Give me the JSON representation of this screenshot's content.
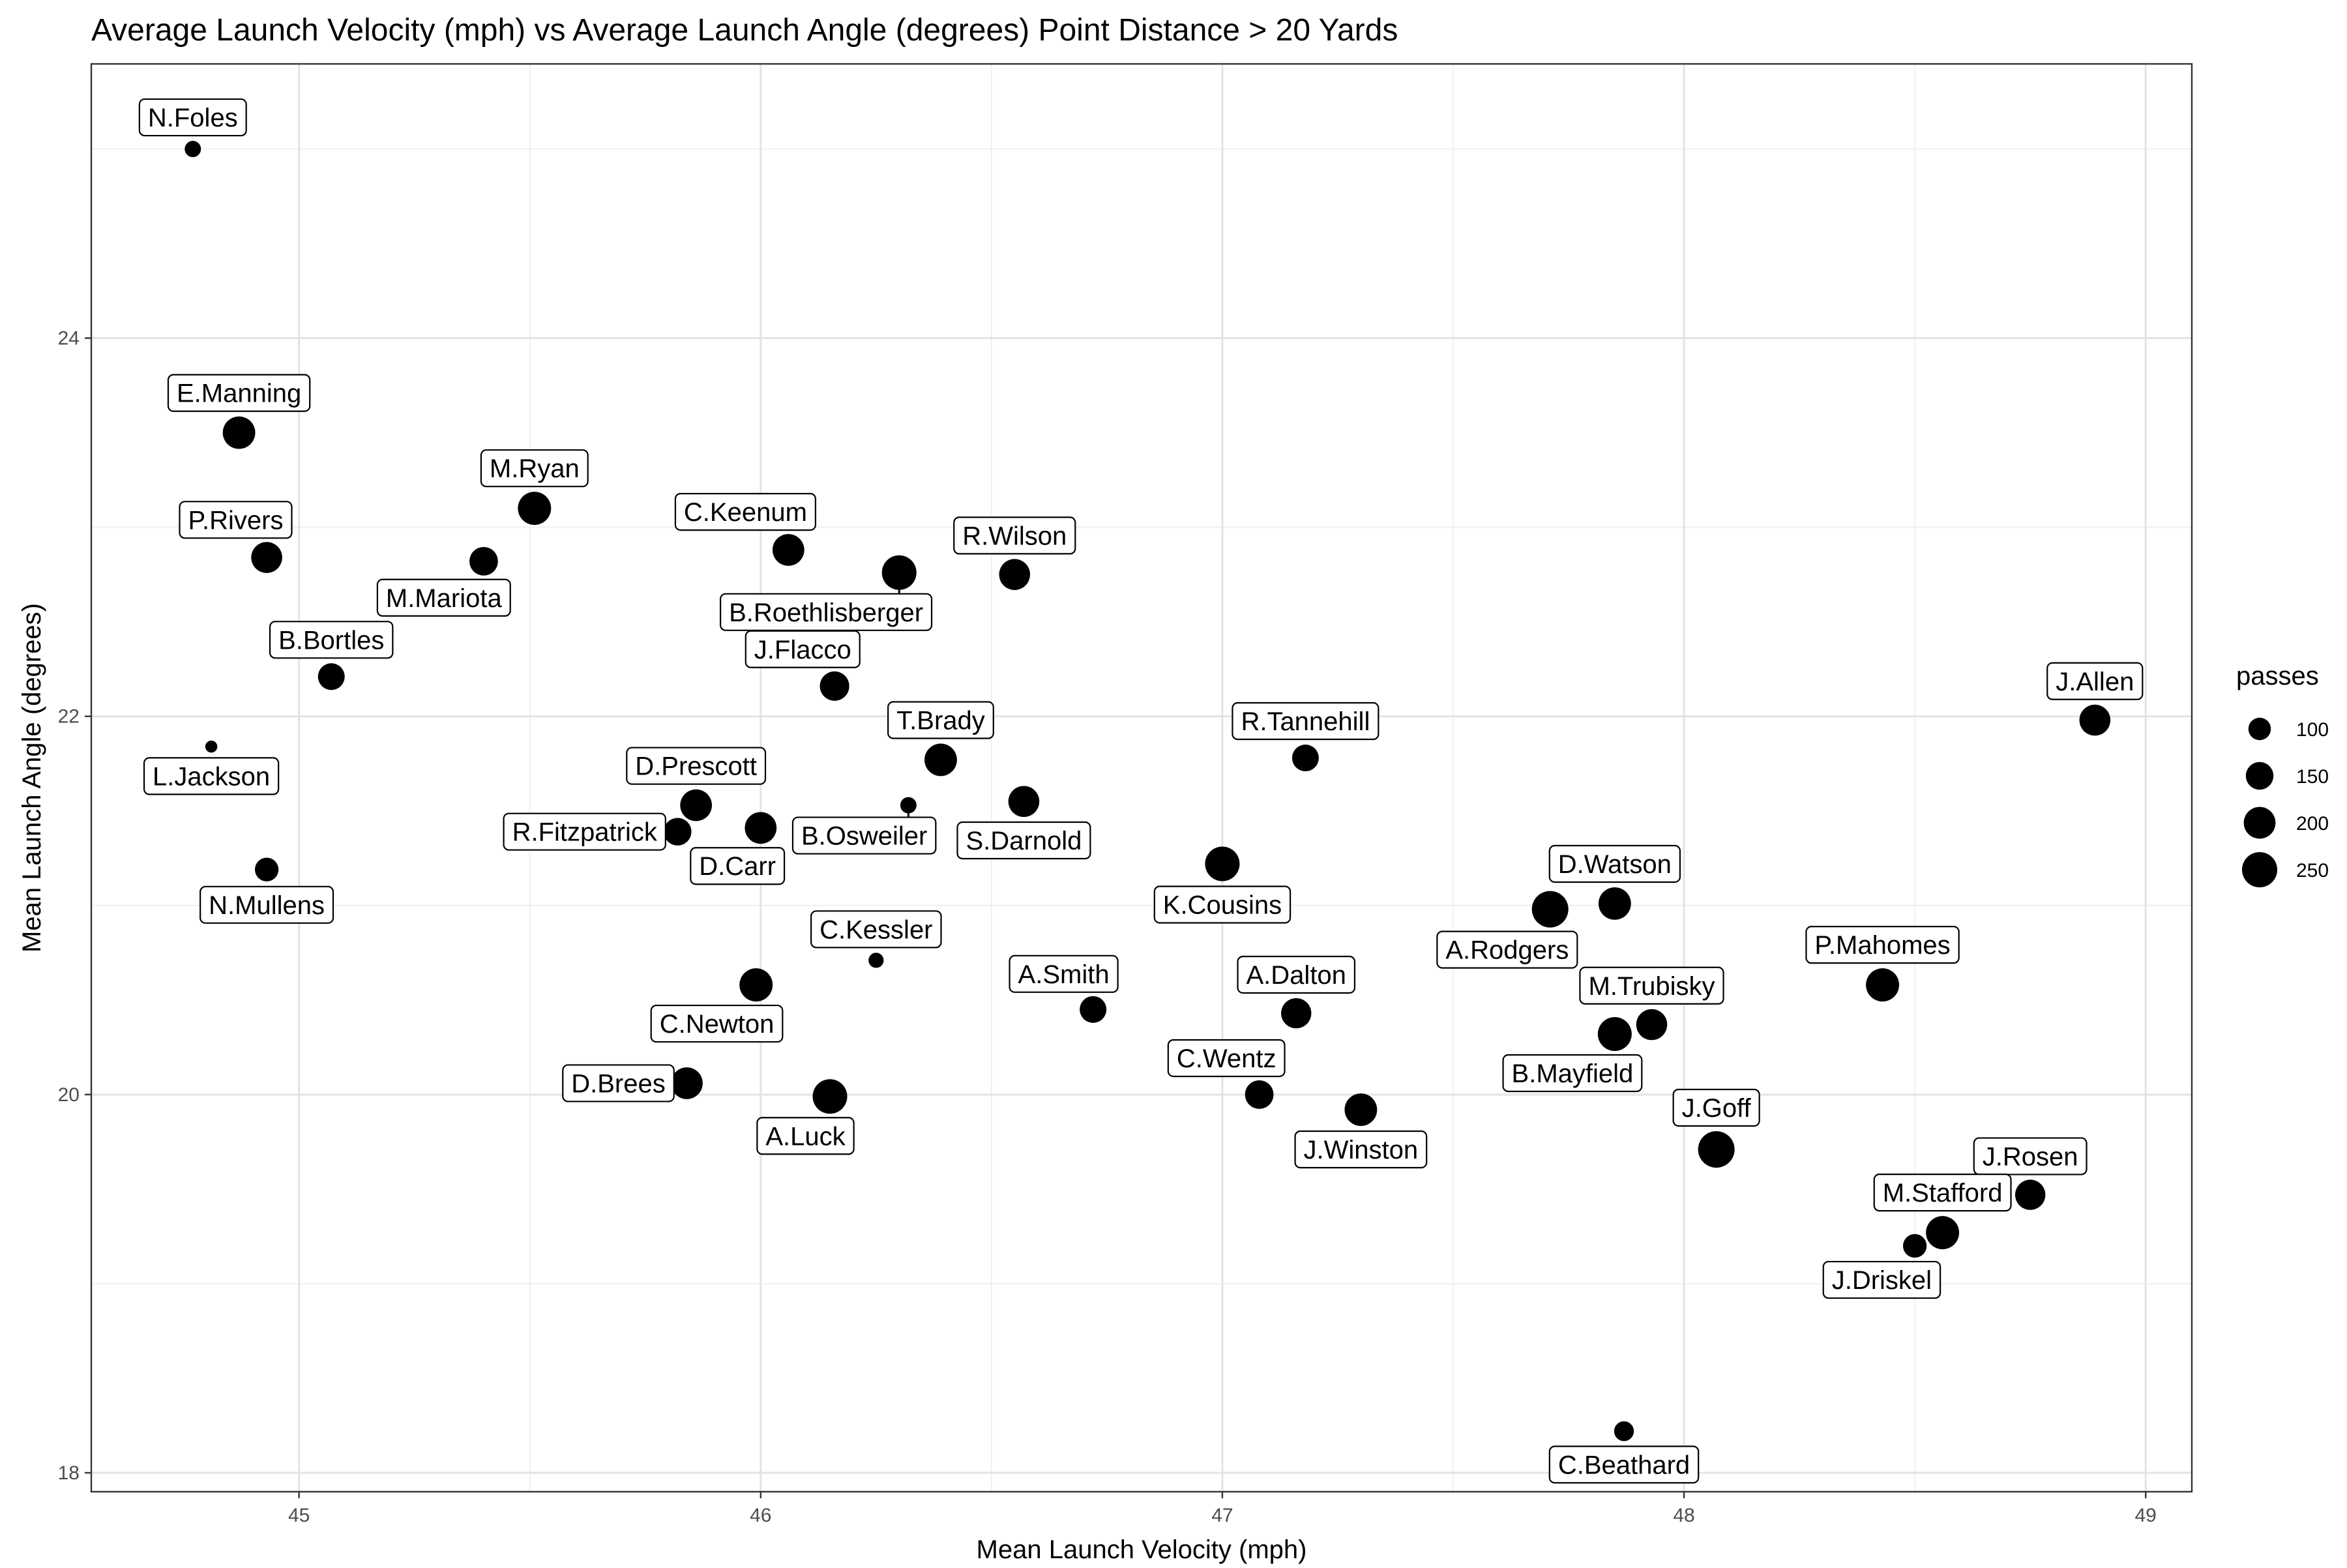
{
  "chart_data": {
    "type": "scatter",
    "title": "Average Launch Velocity (mph) vs Average Launch Angle (degrees) Point Distance > 20 Yards",
    "xlabel": "Mean Launch Velocity (mph)",
    "ylabel": "Mean Launch Angle (degrees)",
    "xlim": [
      44.55,
      49.1
    ],
    "ylim": [
      17.9,
      25.45
    ],
    "x_ticks": [
      45,
      46,
      47,
      48,
      49
    ],
    "y_ticks": [
      18,
      20,
      22,
      24
    ],
    "grid": true,
    "legend": {
      "title": "passes",
      "position": "right",
      "entries": [
        {
          "label": "100",
          "size": 100
        },
        {
          "label": "150",
          "size": 150
        },
        {
          "label": "200",
          "size": 200
        },
        {
          "label": "250",
          "size": 250
        }
      ]
    },
    "size_range": [
      40,
      270
    ],
    "points": [
      {
        "label": "N.Foles",
        "x": 44.77,
        "y": 25.0,
        "passes": 60,
        "label_dir": "up"
      },
      {
        "label": "E.Manning",
        "x": 44.87,
        "y": 23.5,
        "passes": 210,
        "label_dir": "up"
      },
      {
        "label": "P.Rivers",
        "x": 44.93,
        "y": 22.84,
        "passes": 190,
        "label_dir": "up-left"
      },
      {
        "label": "B.Bortles",
        "x": 45.07,
        "y": 22.21,
        "passes": 140,
        "label_dir": "up"
      },
      {
        "label": "L.Jackson",
        "x": 44.81,
        "y": 21.84,
        "passes": 45,
        "label_dir": "down"
      },
      {
        "label": "N.Mullens",
        "x": 44.93,
        "y": 21.19,
        "passes": 110,
        "label_dir": "down"
      },
      {
        "label": "M.Ryan",
        "x": 45.51,
        "y": 23.1,
        "passes": 220,
        "label_dir": "up"
      },
      {
        "label": "M.Mariota",
        "x": 45.4,
        "y": 22.82,
        "passes": 160,
        "label_dir": "down-left"
      },
      {
        "label": "C.Keenum",
        "x": 46.06,
        "y": 22.88,
        "passes": 200,
        "label_dir": "up-left"
      },
      {
        "label": "B.Roethlisberger",
        "x": 46.3,
        "y": 22.76,
        "passes": 240,
        "label_dir": "down-left"
      },
      {
        "label": "R.Wilson",
        "x": 46.55,
        "y": 22.75,
        "passes": 190,
        "label_dir": "up"
      },
      {
        "label": "J.Flacco",
        "x": 46.16,
        "y": 22.16,
        "passes": 170,
        "label_dir": "up-left"
      },
      {
        "label": "T.Brady",
        "x": 46.39,
        "y": 21.77,
        "passes": 210,
        "label_dir": "up"
      },
      {
        "label": "R.Tannehill",
        "x": 47.18,
        "y": 21.78,
        "passes": 140,
        "label_dir": "up"
      },
      {
        "label": "D.Prescott",
        "x": 45.86,
        "y": 21.53,
        "passes": 200,
        "label_dir": "up"
      },
      {
        "label": "R.Fitzpatrick",
        "x": 45.82,
        "y": 21.39,
        "passes": 150,
        "label_dir": "left"
      },
      {
        "label": "D.Carr",
        "x": 46.0,
        "y": 21.41,
        "passes": 200,
        "label_dir": "down-left"
      },
      {
        "label": "B.Osweiler",
        "x": 46.32,
        "y": 21.53,
        "passes": 60,
        "label_dir": "down-left"
      },
      {
        "label": "S.Darnold",
        "x": 46.57,
        "y": 21.55,
        "passes": 190,
        "label_dir": "down"
      },
      {
        "label": "K.Cousins",
        "x": 47.0,
        "y": 21.22,
        "passes": 240,
        "label_dir": "down"
      },
      {
        "label": "J.Allen",
        "x": 48.89,
        "y": 21.98,
        "passes": 190,
        "label_dir": "up"
      },
      {
        "label": "A.Rodgers",
        "x": 47.71,
        "y": 20.98,
        "passes": 270,
        "label_dir": "down-left"
      },
      {
        "label": "D.Watson",
        "x": 47.85,
        "y": 21.01,
        "passes": 210,
        "label_dir": "up"
      },
      {
        "label": "C.Kessler",
        "x": 46.25,
        "y": 20.71,
        "passes": 55,
        "label_dir": "up"
      },
      {
        "label": "C.Newton",
        "x": 45.99,
        "y": 20.58,
        "passes": 220,
        "label_dir": "down-left"
      },
      {
        "label": "A.Smith",
        "x": 46.72,
        "y": 20.45,
        "passes": 140,
        "label_dir": "up-left"
      },
      {
        "label": "A.Dalton",
        "x": 47.16,
        "y": 20.43,
        "passes": 180,
        "label_dir": "up"
      },
      {
        "label": "P.Mahomes",
        "x": 48.43,
        "y": 20.58,
        "passes": 220,
        "label_dir": "up"
      },
      {
        "label": "M.Trubisky",
        "x": 47.93,
        "y": 20.37,
        "passes": 190,
        "label_dir": "up"
      },
      {
        "label": "B.Mayfield",
        "x": 47.85,
        "y": 20.32,
        "passes": 230,
        "label_dir": "down-left"
      },
      {
        "label": "D.Brees",
        "x": 45.84,
        "y": 20.06,
        "passes": 200,
        "label_dir": "left"
      },
      {
        "label": "A.Luck",
        "x": 46.15,
        "y": 19.99,
        "passes": 240,
        "label_dir": "down-left"
      },
      {
        "label": "C.Wentz",
        "x": 47.08,
        "y": 20.0,
        "passes": 160,
        "label_dir": "up-left"
      },
      {
        "label": "J.Winston",
        "x": 47.3,
        "y": 19.92,
        "passes": 210,
        "label_dir": "down"
      },
      {
        "label": "J.Goff",
        "x": 48.07,
        "y": 19.71,
        "passes": 270,
        "label_dir": "up"
      },
      {
        "label": "J.Rosen",
        "x": 48.75,
        "y": 19.47,
        "passes": 180,
        "label_dir": "up"
      },
      {
        "label": "M.Stafford",
        "x": 48.56,
        "y": 19.27,
        "passes": 220,
        "label_dir": "up"
      },
      {
        "label": "J.Driskel",
        "x": 48.5,
        "y": 19.2,
        "passes": 110,
        "label_dir": "down-left"
      },
      {
        "label": "C.Beathard",
        "x": 47.87,
        "y": 18.22,
        "passes": 80,
        "label_dir": "down"
      }
    ]
  }
}
